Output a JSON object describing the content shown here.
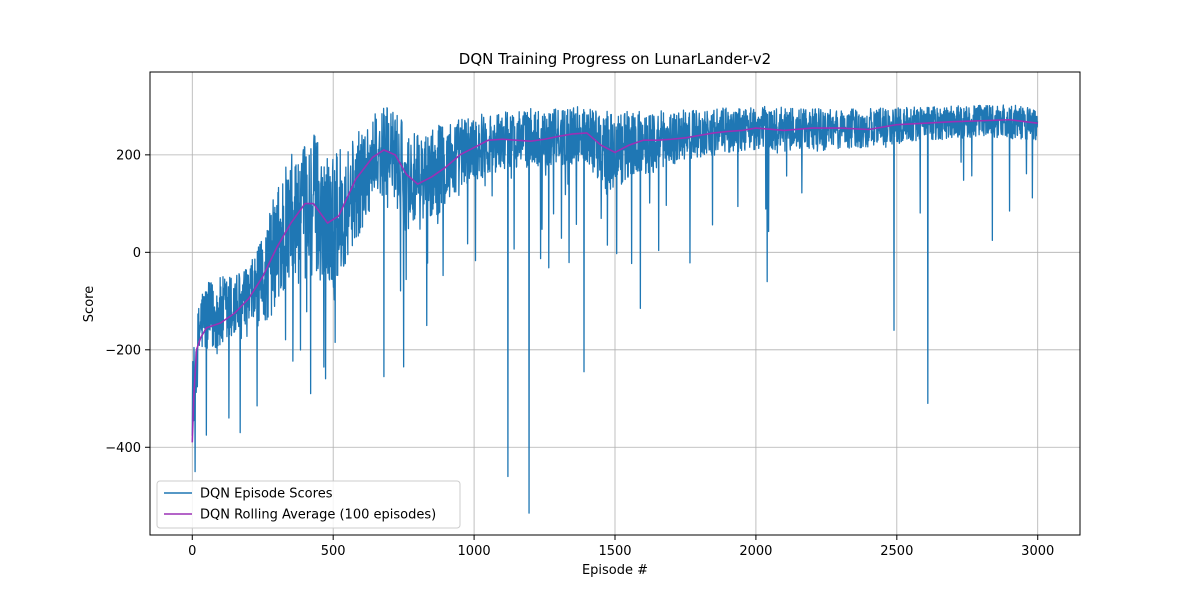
{
  "chart_data": {
    "type": "line",
    "title": "DQN Training Progress on LunarLander-v2",
    "xlabel": "Episode #",
    "ylabel": "Score",
    "xlim": [
      -150,
      3150
    ],
    "ylim": [
      -580,
      370
    ],
    "xticks": [
      0,
      500,
      1000,
      1500,
      2000,
      2500,
      3000
    ],
    "yticks": [
      -400,
      -200,
      0,
      200
    ],
    "xtick_labels": [
      "0",
      "500",
      "1000",
      "1500",
      "2000",
      "2500",
      "3000"
    ],
    "ytick_labels": [
      "−400",
      "−200",
      "0",
      "200"
    ],
    "grid": true,
    "legend_position": "lower-left",
    "series": [
      {
        "name": "DQN Episode Scores",
        "color": "#1f77b4",
        "generator": "noisy-scores",
        "n": 3000,
        "envelope_x": [
          0,
          30,
          100,
          200,
          250,
          300,
          350,
          400,
          430,
          500,
          580,
          650,
          700,
          760,
          800,
          900,
          1000,
          1100,
          1200,
          1300,
          1400,
          1470,
          1550,
          1650,
          1800,
          2000,
          2200,
          2400,
          2600,
          2800,
          3000
        ],
        "envelope_mean": [
          -300,
          -140,
          -130,
          -100,
          -60,
          10,
          60,
          80,
          100,
          60,
          130,
          200,
          210,
          150,
          140,
          180,
          215,
          230,
          235,
          235,
          245,
          200,
          220,
          230,
          245,
          255,
          250,
          255,
          265,
          270,
          265
        ],
        "envelope_spread": [
          80,
          70,
          80,
          70,
          90,
          130,
          140,
          140,
          150,
          140,
          110,
          90,
          90,
          110,
          100,
          90,
          70,
          60,
          60,
          60,
          60,
          90,
          70,
          60,
          50,
          45,
          45,
          40,
          35,
          35,
          35
        ],
        "outliers": [
          {
            "x": 10,
            "y": -450
          },
          {
            "x": 50,
            "y": -375
          },
          {
            "x": 130,
            "y": -340
          },
          {
            "x": 170,
            "y": -370
          },
          {
            "x": 230,
            "y": -315
          },
          {
            "x": 420,
            "y": -290
          },
          {
            "x": 680,
            "y": -255
          },
          {
            "x": 750,
            "y": -235
          },
          {
            "x": 1120,
            "y": -460
          },
          {
            "x": 1195,
            "y": -535
          },
          {
            "x": 1390,
            "y": -245
          },
          {
            "x": 1590,
            "y": -115
          },
          {
            "x": 2040,
            "y": -60
          },
          {
            "x": 2490,
            "y": -160
          },
          {
            "x": 2610,
            "y": -310
          }
        ]
      },
      {
        "name": "DQN Rolling Average (100 episodes)",
        "color": "#9b30b5",
        "x": [
          0,
          5,
          15,
          30,
          50,
          100,
          150,
          200,
          250,
          300,
          350,
          400,
          430,
          480,
          520,
          580,
          640,
          680,
          720,
          760,
          800,
          850,
          900,
          950,
          1000,
          1050,
          1100,
          1150,
          1200,
          1250,
          1300,
          1350,
          1400,
          1450,
          1500,
          1550,
          1600,
          1650,
          1700,
          1750,
          1800,
          1850,
          1900,
          1950,
          2000,
          2100,
          2200,
          2300,
          2400,
          2500,
          2600,
          2700,
          2800,
          2900,
          3000
        ],
        "y": [
          -390,
          -300,
          -200,
          -175,
          -155,
          -145,
          -125,
          -95,
          -50,
          10,
          60,
          100,
          100,
          60,
          75,
          150,
          195,
          210,
          200,
          160,
          140,
          155,
          175,
          200,
          215,
          230,
          232,
          230,
          228,
          232,
          238,
          243,
          245,
          220,
          205,
          220,
          230,
          230,
          232,
          235,
          240,
          245,
          248,
          250,
          255,
          250,
          255,
          255,
          252,
          262,
          265,
          268,
          270,
          272,
          265
        ]
      }
    ]
  }
}
